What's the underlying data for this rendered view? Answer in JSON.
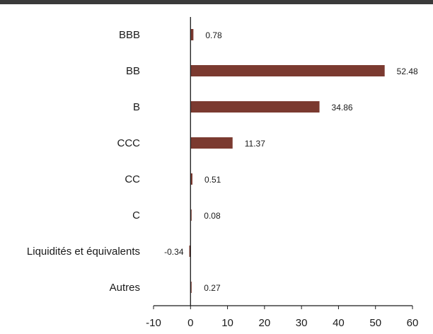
{
  "chart_data": {
    "type": "bar",
    "orientation": "horizontal",
    "title": "",
    "xlabel": "",
    "ylabel": "",
    "categories": [
      "BBB",
      "BB",
      "B",
      "CCC",
      "CC",
      "C",
      "Liquidités et équivalents",
      "Autres"
    ],
    "values": [
      0.78,
      52.48,
      34.86,
      11.37,
      0.51,
      0.08,
      -0.34,
      0.27
    ],
    "value_labels": [
      "0.78",
      "52.48",
      "34.86",
      "11.37",
      "0.51",
      "0.08",
      "-0.34",
      "0.27"
    ],
    "xlim": [
      -10,
      60
    ],
    "xticks": [
      -10,
      0,
      10,
      20,
      30,
      40,
      50,
      60
    ],
    "grid": false,
    "bar_color": "#7b3a30",
    "axis_color": "#1a1a1a",
    "topbar_color": "#3a3a3a"
  }
}
